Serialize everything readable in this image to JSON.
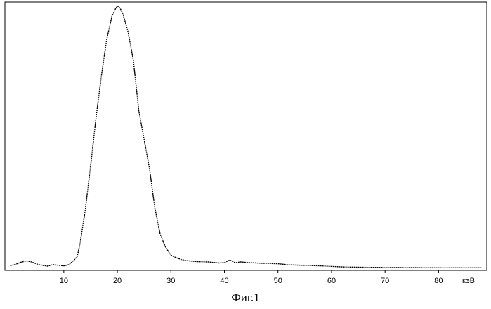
{
  "caption": "Фиг.1",
  "chart_data": {
    "type": "line",
    "title": "",
    "xlabel": "",
    "ylabel": "",
    "unit_label": "кэВ",
    "xlim": [
      -1,
      89
    ],
    "ylim": [
      0,
      100
    ],
    "xticks": [
      10,
      20,
      30,
      40,
      50,
      60,
      70,
      80
    ],
    "grid": false,
    "legend": "none",
    "colors": {
      "line": "#000000",
      "frame": "#000000",
      "background": "#ffffff"
    },
    "series": [
      {
        "x": [
          0,
          1,
          2,
          3,
          4,
          5,
          6,
          7,
          8,
          9,
          10,
          11,
          12,
          12.5,
          13,
          14,
          15,
          16,
          17,
          18,
          19,
          19.5,
          20,
          20.5,
          21,
          22,
          23,
          24,
          25,
          26,
          27,
          28,
          29,
          30,
          31,
          32,
          33,
          35,
          37,
          39,
          40,
          41,
          42,
          43,
          45,
          47,
          50,
          52,
          55,
          58,
          60,
          62,
          65,
          70,
          75,
          80,
          85,
          88
        ],
        "y": [
          1,
          1.5,
          2.3,
          2.8,
          2.4,
          1.6,
          1.1,
          0.8,
          1.4,
          1.1,
          0.9,
          1.4,
          3.3,
          4.5,
          9,
          22,
          39,
          57,
          73,
          87,
          96,
          98.3,
          99.8,
          99,
          97,
          90,
          79,
          60,
          49,
          38,
          23,
          13,
          8,
          5,
          4,
          3.3,
          2.9,
          2.5,
          2.4,
          2,
          2.2,
          3.1,
          2.1,
          2.4,
          2.1,
          1.9,
          1.7,
          1.3,
          1.1,
          0.9,
          0.7,
          0.5,
          0.4,
          0.3,
          0.25,
          0.2,
          0.2,
          0.2
        ]
      }
    ]
  }
}
